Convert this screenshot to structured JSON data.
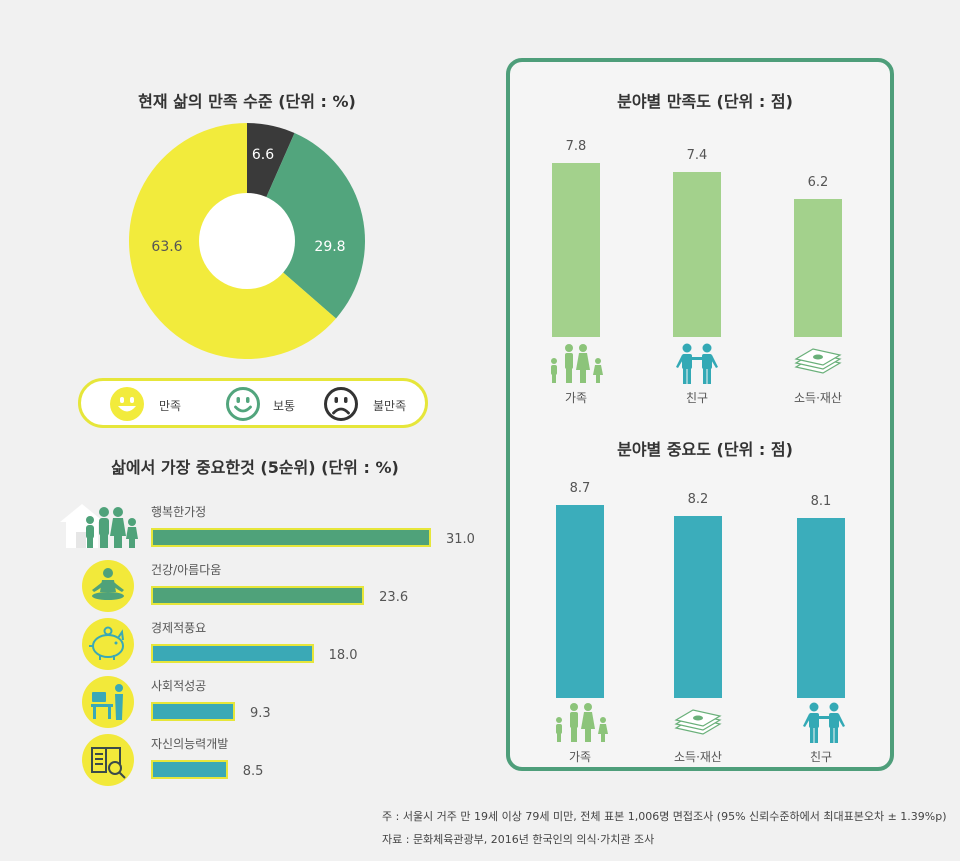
{
  "colors": {
    "yellow": "#f2eb3c",
    "green": "#52a57d",
    "dark": "#3a3a3a",
    "light_green": "#a3d18c",
    "teal": "#3badbb",
    "hbar_green": "#4fa27a",
    "hbar_teal": "#3aa9b6",
    "icon_green": "#8cc47a",
    "icon_teal": "#33a9b5"
  },
  "chart_data": [
    {
      "type": "pie",
      "title": "현재 삶의 만족 수준 (단위 : %)",
      "slices": [
        {
          "name": "불만족",
          "value": 6.6,
          "label": "6.6"
        },
        {
          "name": "보통",
          "value": 29.8,
          "label": "29.8"
        },
        {
          "name": "만족",
          "value": 63.6,
          "label": "63.6"
        }
      ],
      "legend": {
        "placement": "bottom",
        "items": [
          "만족",
          "보통",
          "불만족"
        ]
      }
    },
    {
      "type": "bar",
      "orientation": "horizontal",
      "title": "삶에서 가장 중요한것 (5순위) (단위 : %)",
      "categories": [
        "행복한가정",
        "건강/아름다움",
        "경제적풍요",
        "사회적성공",
        "자신의능력개발"
      ],
      "values": [
        31.0,
        23.6,
        18.0,
        9.3,
        8.5
      ],
      "value_labels": [
        "31.0",
        "23.6",
        "18.0",
        "9.3",
        "8.5"
      ]
    },
    {
      "type": "bar",
      "title": "분야별 만족도 (단위 : 점)",
      "categories": [
        "가족",
        "친구",
        "소득·재산"
      ],
      "values": [
        7.8,
        7.4,
        6.2
      ],
      "value_labels": [
        "7.8",
        "7.4",
        "6.2"
      ]
    },
    {
      "type": "bar",
      "title": "분야별 중요도 (단위 : 점)",
      "categories": [
        "가족",
        "소득·재산",
        "친구"
      ],
      "values": [
        8.7,
        8.2,
        8.1
      ],
      "value_labels": [
        "8.7",
        "8.2",
        "8.1"
      ]
    }
  ],
  "footnotes": {
    "note": "주 : 서울시 거주 만 19세 이상 79세 미만, 전체 표본 1,006명 면접조사 (95% 신뢰수준하에서 최대표본오차 ± 1.39%p)",
    "source": "자료 : 문화체육관광부, 2016년 한국인의 의식·가치관 조사"
  }
}
